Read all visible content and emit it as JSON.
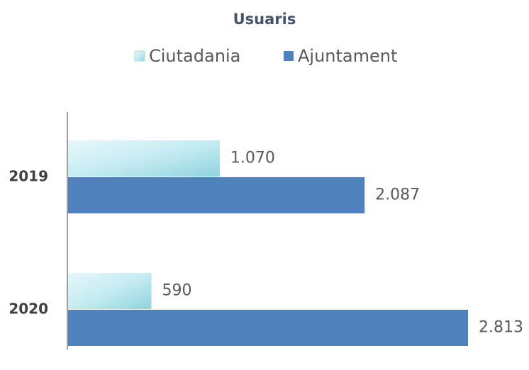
{
  "chart_data": {
    "type": "bar",
    "orientation": "horizontal",
    "title": "Usuaris",
    "categories": [
      "2019",
      "2020"
    ],
    "series": [
      {
        "name": "Ciutadania",
        "color": "#a9dfe8",
        "values": [
          1070,
          590
        ],
        "value_labels": [
          "1.070",
          "590"
        ]
      },
      {
        "name": "Ajuntament",
        "color": "#4f81bd",
        "values": [
          2087,
          2813
        ],
        "value_labels": [
          "2.087",
          "2.813"
        ]
      }
    ]
  }
}
